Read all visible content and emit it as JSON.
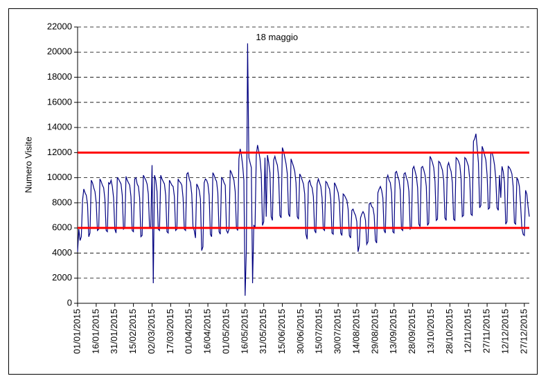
{
  "chart_data": {
    "type": "line",
    "y_label": "Numero Visite",
    "annotation": "18 maggio",
    "color": "#000080",
    "reference_lines": [
      12000,
      6000
    ],
    "reference_color": "#ff0000",
    "grid": true,
    "ylim": [
      0,
      22000
    ],
    "yticks": [
      0,
      2000,
      4000,
      6000,
      8000,
      10000,
      12000,
      14000,
      16000,
      18000,
      20000,
      22000
    ],
    "categories": [
      "01/01/2015",
      null,
      null,
      null,
      null,
      null,
      null,
      null,
      null,
      null,
      null,
      null,
      null,
      null,
      null,
      "16/01/2015",
      null,
      null,
      null,
      null,
      null,
      null,
      null,
      null,
      null,
      null,
      null,
      null,
      null,
      null,
      "31/01/2015",
      null,
      null,
      null,
      null,
      null,
      null,
      null,
      null,
      null,
      null,
      null,
      null,
      null,
      null,
      "15/02/2015",
      null,
      null,
      null,
      null,
      null,
      null,
      null,
      null,
      null,
      null,
      null,
      null,
      null,
      null,
      "02/03/2015",
      null,
      null,
      null,
      null,
      null,
      null,
      null,
      null,
      null,
      null,
      null,
      null,
      null,
      null,
      "17/03/2015",
      null,
      null,
      null,
      null,
      null,
      null,
      null,
      null,
      null,
      null,
      null,
      null,
      null,
      null,
      "01/04/2015",
      null,
      null,
      null,
      null,
      null,
      null,
      null,
      null,
      null,
      null,
      null,
      null,
      null,
      null,
      "16/04/2015",
      null,
      null,
      null,
      null,
      null,
      null,
      null,
      null,
      null,
      null,
      null,
      null,
      null,
      null,
      "01/05/2015",
      null,
      null,
      null,
      null,
      null,
      null,
      null,
      null,
      null,
      null,
      null,
      null,
      null,
      null,
      "16/05/2015",
      null,
      null,
      null,
      null,
      null,
      null,
      null,
      null,
      null,
      null,
      null,
      null,
      null,
      null,
      "31/05/2015",
      null,
      null,
      null,
      null,
      null,
      null,
      null,
      null,
      null,
      null,
      null,
      null,
      null,
      null,
      "15/06/2015",
      null,
      null,
      null,
      null,
      null,
      null,
      null,
      null,
      null,
      null,
      null,
      null,
      null,
      null,
      "30/06/2015",
      null,
      null,
      null,
      null,
      null,
      null,
      null,
      null,
      null,
      null,
      null,
      null,
      null,
      null,
      "15/07/2015",
      null,
      null,
      null,
      null,
      null,
      null,
      null,
      null,
      null,
      null,
      null,
      null,
      null,
      null,
      "30/07/2015",
      null,
      null,
      null,
      null,
      null,
      null,
      null,
      null,
      null,
      null,
      null,
      null,
      null,
      null,
      "14/08/2015",
      null,
      null,
      null,
      null,
      null,
      null,
      null,
      null,
      null,
      null,
      null,
      null,
      null,
      null,
      "29/08/2015",
      null,
      null,
      null,
      null,
      null,
      null,
      null,
      null,
      null,
      null,
      null,
      null,
      null,
      null,
      "13/09/2015",
      null,
      null,
      null,
      null,
      null,
      null,
      null,
      null,
      null,
      null,
      null,
      null,
      null,
      null,
      "28/09/2015",
      null,
      null,
      null,
      null,
      null,
      null,
      null,
      null,
      null,
      null,
      null,
      null,
      null,
      null,
      "13/10/2015",
      null,
      null,
      null,
      null,
      null,
      null,
      null,
      null,
      null,
      null,
      null,
      null,
      null,
      null,
      "28/10/2015",
      null,
      null,
      null,
      null,
      null,
      null,
      null,
      null,
      null,
      null,
      null,
      null,
      null,
      null,
      "12/11/2015",
      null,
      null,
      null,
      null,
      null,
      null,
      null,
      null,
      null,
      null,
      null,
      null,
      null,
      null,
      "27/11/2015",
      null,
      null,
      null,
      null,
      null,
      null,
      null,
      null,
      null,
      null,
      null,
      null,
      null,
      null,
      "12/12/2015",
      null,
      null,
      null,
      null,
      null,
      null,
      null,
      null,
      null,
      null,
      null,
      null,
      null,
      null,
      "27/12/2015",
      null,
      null,
      null,
      null
    ],
    "values": [
      4100,
      5900,
      5000,
      5300,
      8200,
      9100,
      8800,
      8600,
      7900,
      5300,
      5600,
      9800,
      9600,
      9200,
      8900,
      8000,
      5800,
      5900,
      9900,
      9700,
      9400,
      9200,
      8300,
      5800,
      5700,
      9600,
      9500,
      9800,
      9300,
      8400,
      5900,
      5600,
      10000,
      9900,
      9700,
      9500,
      8600,
      5900,
      6000,
      10100,
      9800,
      9600,
      9400,
      8500,
      5800,
      5700,
      9900,
      10000,
      9500,
      9300,
      8400,
      5300,
      5400,
      10200,
      10000,
      9800,
      9500,
      8700,
      6000,
      6100,
      11000,
      1600,
      10200,
      9800,
      8900,
      5900,
      5800,
      10200,
      9900,
      9700,
      9500,
      8600,
      5700,
      5600,
      9800,
      9600,
      9400,
      9300,
      8500,
      5800,
      5900,
      9900,
      9700,
      9600,
      9400,
      8400,
      5900,
      5800,
      10300,
      10400,
      9900,
      9600,
      8700,
      6100,
      5800,
      5200,
      9500,
      9300,
      9000,
      8300,
      4200,
      4500,
      9600,
      9900,
      9800,
      9500,
      8600,
      5500,
      5300,
      10400,
      10200,
      9900,
      9700,
      8800,
      5700,
      5500,
      10000,
      9900,
      9600,
      9400,
      5800,
      5600,
      5900,
      10600,
      10400,
      10100,
      9800,
      8900,
      6000,
      5800,
      11500,
      12300,
      11800,
      11000,
      9800,
      600,
      4300,
      20700,
      11600,
      11200,
      10800,
      1600,
      6200,
      6100,
      11800,
      12600,
      12100,
      11500,
      10300,
      6200,
      6500,
      11600,
      6900,
      11800,
      11200,
      10400,
      6900,
      6600,
      11400,
      11700,
      11300,
      11000,
      10100,
      7000,
      6800,
      12400,
      12100,
      11600,
      11100,
      10300,
      7100,
      6900,
      11500,
      11200,
      10900,
      10500,
      9600,
      6900,
      6700,
      10300,
      10100,
      9800,
      9500,
      8700,
      5500,
      5100,
      9600,
      9800,
      9400,
      9200,
      8500,
      5800,
      5600,
      9500,
      9900,
      9600,
      9300,
      8400,
      5900,
      5800,
      9700,
      9600,
      9300,
      9100,
      8300,
      5600,
      5500,
      9600,
      9400,
      9100,
      8800,
      8000,
      5600,
      5400,
      8700,
      8600,
      8400,
      8200,
      7500,
      5400,
      5200,
      7400,
      7500,
      7200,
      7000,
      6500,
      4100,
      4600,
      6800,
      7100,
      7300,
      7100,
      6600,
      4700,
      4900,
      7900,
      8000,
      7700,
      7600,
      7000,
      5000,
      4800,
      8800,
      9100,
      9300,
      9000,
      8400,
      5800,
      5600,
      9900,
      10200,
      9800,
      9600,
      8800,
      5700,
      5600,
      10400,
      10500,
      10100,
      9800,
      9000,
      5900,
      5800,
      10300,
      10400,
      10000,
      9700,
      8900,
      5900,
      6000,
      10700,
      10900,
      10500,
      10100,
      9200,
      6300,
      6100,
      10800,
      10900,
      10600,
      10200,
      9300,
      6200,
      6400,
      11700,
      11500,
      11200,
      10800,
      9700,
      6600,
      6700,
      11300,
      11200,
      10900,
      10600,
      9800,
      6800,
      6600,
      10900,
      11200,
      10800,
      10500,
      9600,
      6700,
      6600,
      11600,
      11500,
      11300,
      11000,
      10000,
      6900,
      7000,
      11600,
      11500,
      11200,
      10900,
      9900,
      7100,
      7000,
      12900,
      13100,
      13500,
      12400,
      11200,
      7600,
      7800,
      12500,
      12200,
      11800,
      11400,
      10200,
      7500,
      7600,
      11900,
      12000,
      11600,
      11000,
      9900,
      7600,
      7400,
      10200,
      8400,
      10900,
      10500,
      9600,
      6300,
      6500,
      10900,
      10800,
      10600,
      10300,
      9300,
      6400,
      6300,
      10000,
      9800,
      9300,
      7800,
      6000,
      5500,
      5400,
      9000,
      8700,
      7700,
      6900
    ]
  }
}
